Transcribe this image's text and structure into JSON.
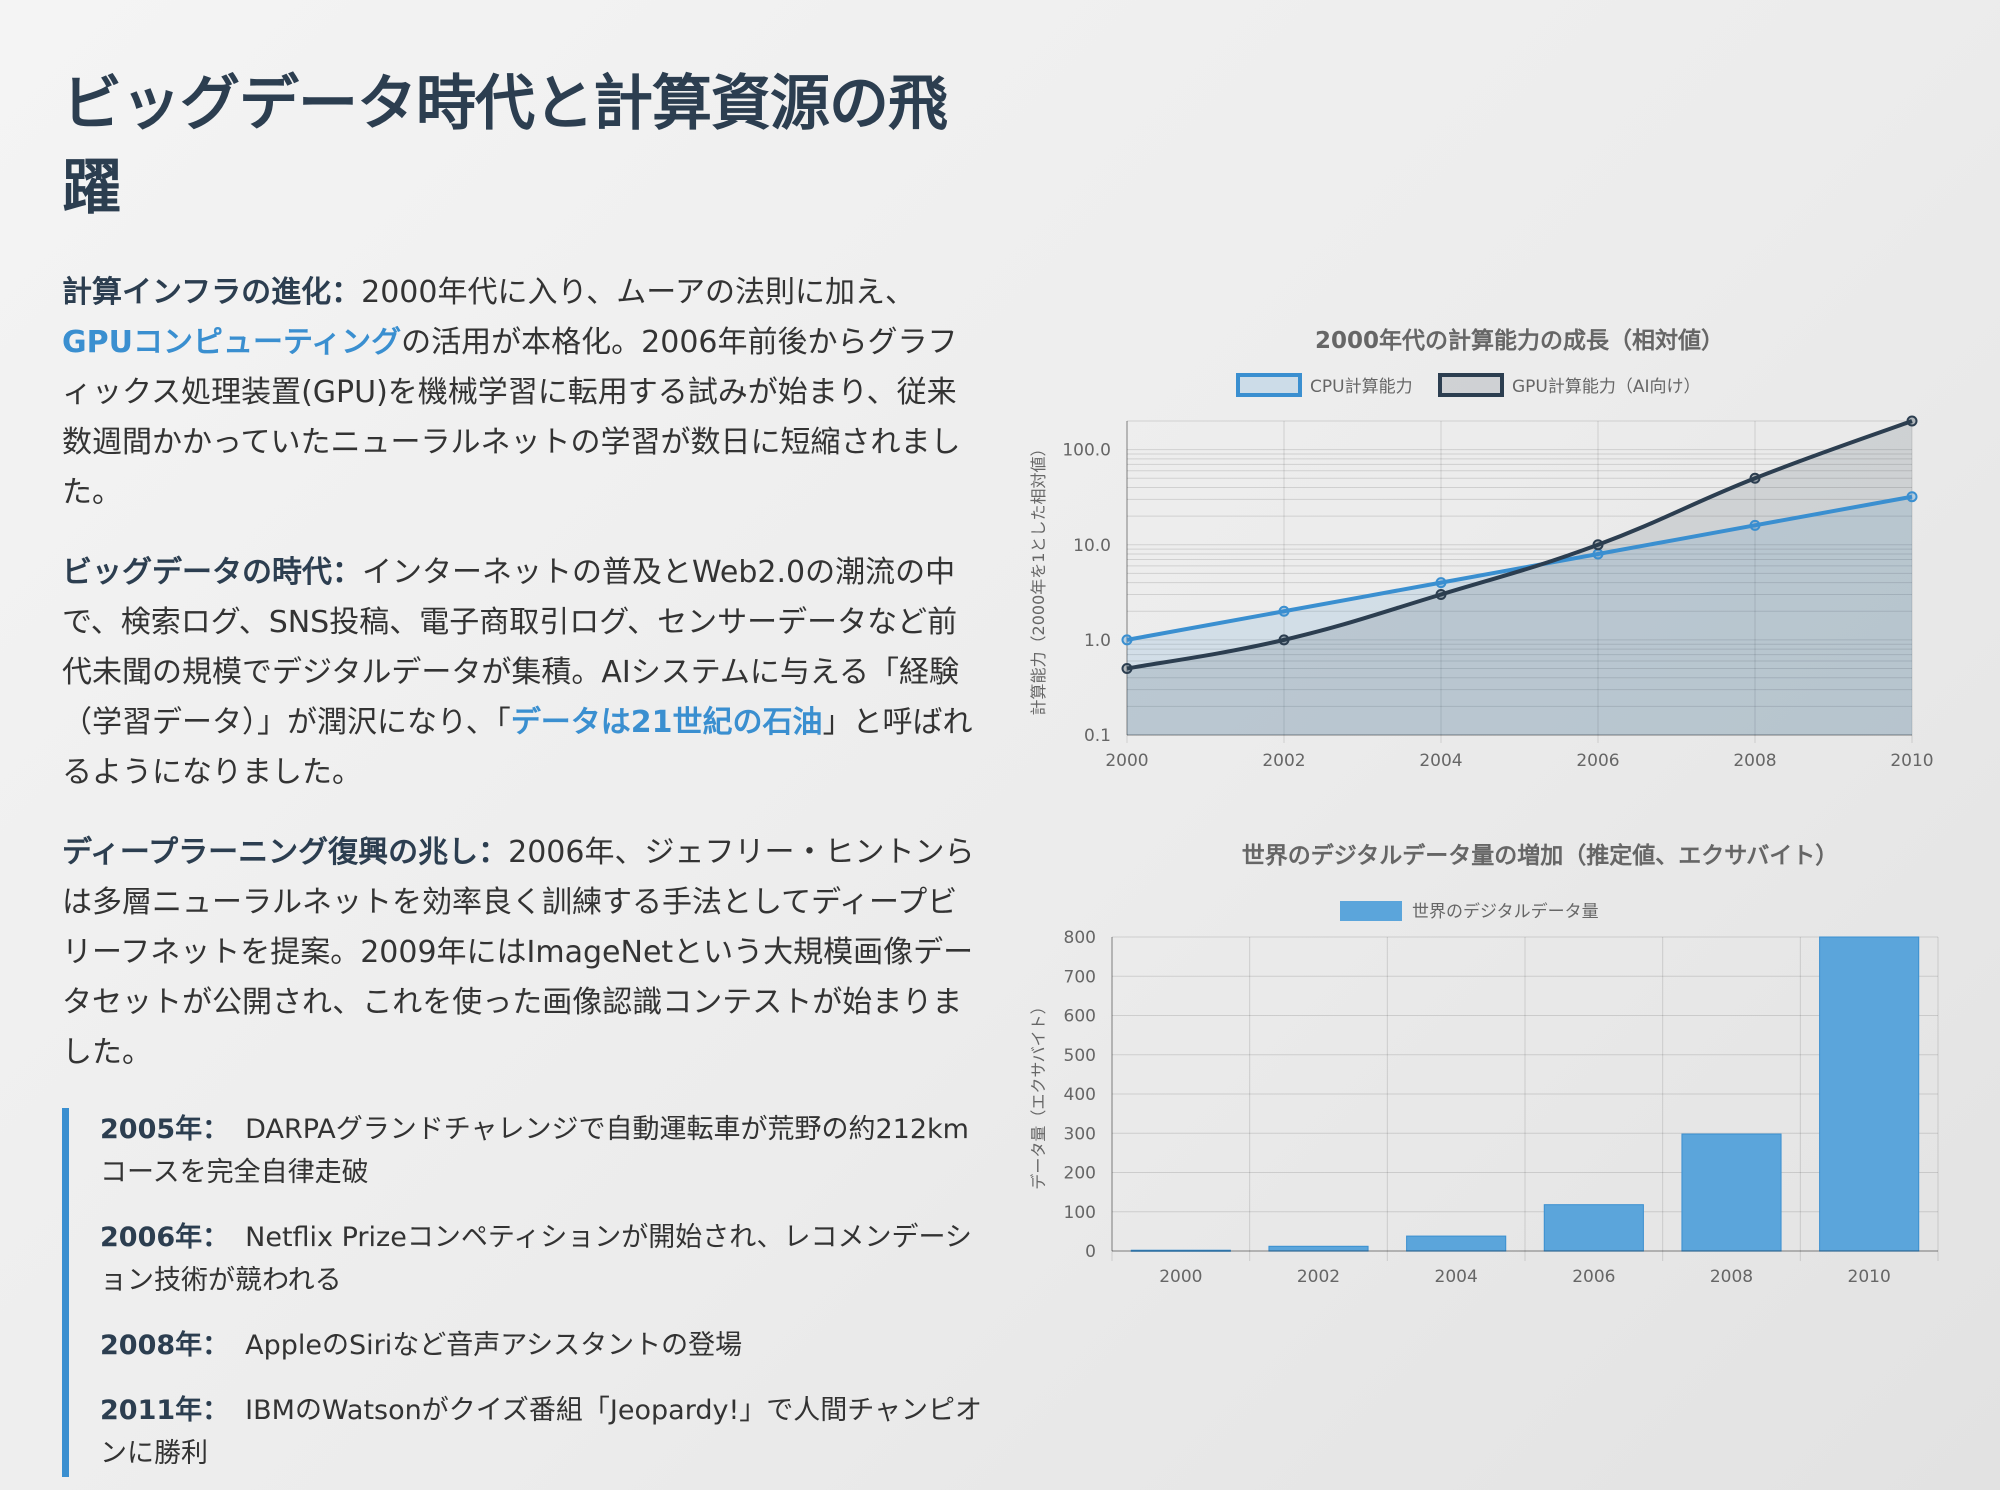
{
  "title": "ビッグデータ時代と計算資源の飛躍",
  "sections": [
    {
      "label": "計算インフラの進化：",
      "text1": "2000年代に入り、ムーアの法則に加え、",
      "highlight": "GPUコンピューティング",
      "text2": "の活用が本格化。2006年前後からグラフィックス処理装置(GPU)を機械学習に転用する試みが始まり、従来数週間かかっていたニューラルネットの学習が数日に短縮されました。"
    },
    {
      "label": "ビッグデータの時代：",
      "text1": "インターネットの普及とWeb2.0の潮流の中で、検索ログ、SNS投稿、電子商取引ログ、センサーデータなど前代未聞の規模でデジタルデータが集積。AIシステムに与える「経験（学習データ）」が潤沢になり、「",
      "highlight": "データは21世紀の石油",
      "text2": "」と呼ばれるようになりました。"
    },
    {
      "label": "ディープラーニング復興の兆し：",
      "text1": "2006年、ジェフリー・ヒントンらは多層ニューラルネットを効率良く訓練する手法としてディープビリーフネットを提案。2009年にはImageNetという大規模画像データセットが公開され、これを使った画像認識コンテストが始まりました。"
    }
  ],
  "timeline": [
    {
      "year": "2005年：",
      "text": "DARPAグランドチャレンジで自動運転車が荒野の約212kmコースを完全自律走破"
    },
    {
      "year": "2006年：",
      "text": "Netflix Prizeコンペティションが開始され、レコメンデーション技術が競われる"
    },
    {
      "year": "2008年：",
      "text": "AppleのSiriなど音声アシスタントの登場"
    },
    {
      "year": "2011年：",
      "text": "IBMのWatsonがクイズ番組「Jeopardy!」で人間チャンピオンに勝利"
    }
  ],
  "colors": {
    "accent": "#3a8fd0",
    "dark": "#2c3e50"
  },
  "chart_data": [
    {
      "type": "line",
      "title": "2000年代の計算能力の成長（相対値）",
      "ylabel": "計算能力（2000年を1とした相対値）",
      "xlabel": "",
      "yscale": "log",
      "ylim": [
        0.1,
        200
      ],
      "y_ticks": [
        "100.0",
        "10.0",
        "1.0",
        "0.1"
      ],
      "x": [
        "2000",
        "2002",
        "2004",
        "2006",
        "2008",
        "2010"
      ],
      "series": [
        {
          "name": "CPU計算能力",
          "color": "#3a8fd0",
          "values": [
            1,
            2,
            4,
            8,
            16,
            32
          ]
        },
        {
          "name": "GPU計算能力（AI向け）",
          "color": "#2c3e50",
          "values": [
            0.5,
            1,
            3,
            10,
            50,
            200
          ]
        }
      ]
    },
    {
      "type": "bar",
      "title": "世界のデジタルデータ量の増加（推定値、エクサバイト）",
      "ylabel": "データ量（エクサバイト）",
      "xlabel": "",
      "ylim": [
        0,
        800
      ],
      "y_ticks": [
        "800",
        "700",
        "600",
        "500",
        "400",
        "300",
        "200",
        "100",
        "0"
      ],
      "categories": [
        "2000",
        "2002",
        "2004",
        "2006",
        "2008",
        "2010"
      ],
      "series": [
        {
          "name": "世界のデジタルデータ量",
          "color": "#5ba5db",
          "values": [
            2,
            12,
            38,
            118,
            298,
            800
          ]
        }
      ]
    }
  ]
}
